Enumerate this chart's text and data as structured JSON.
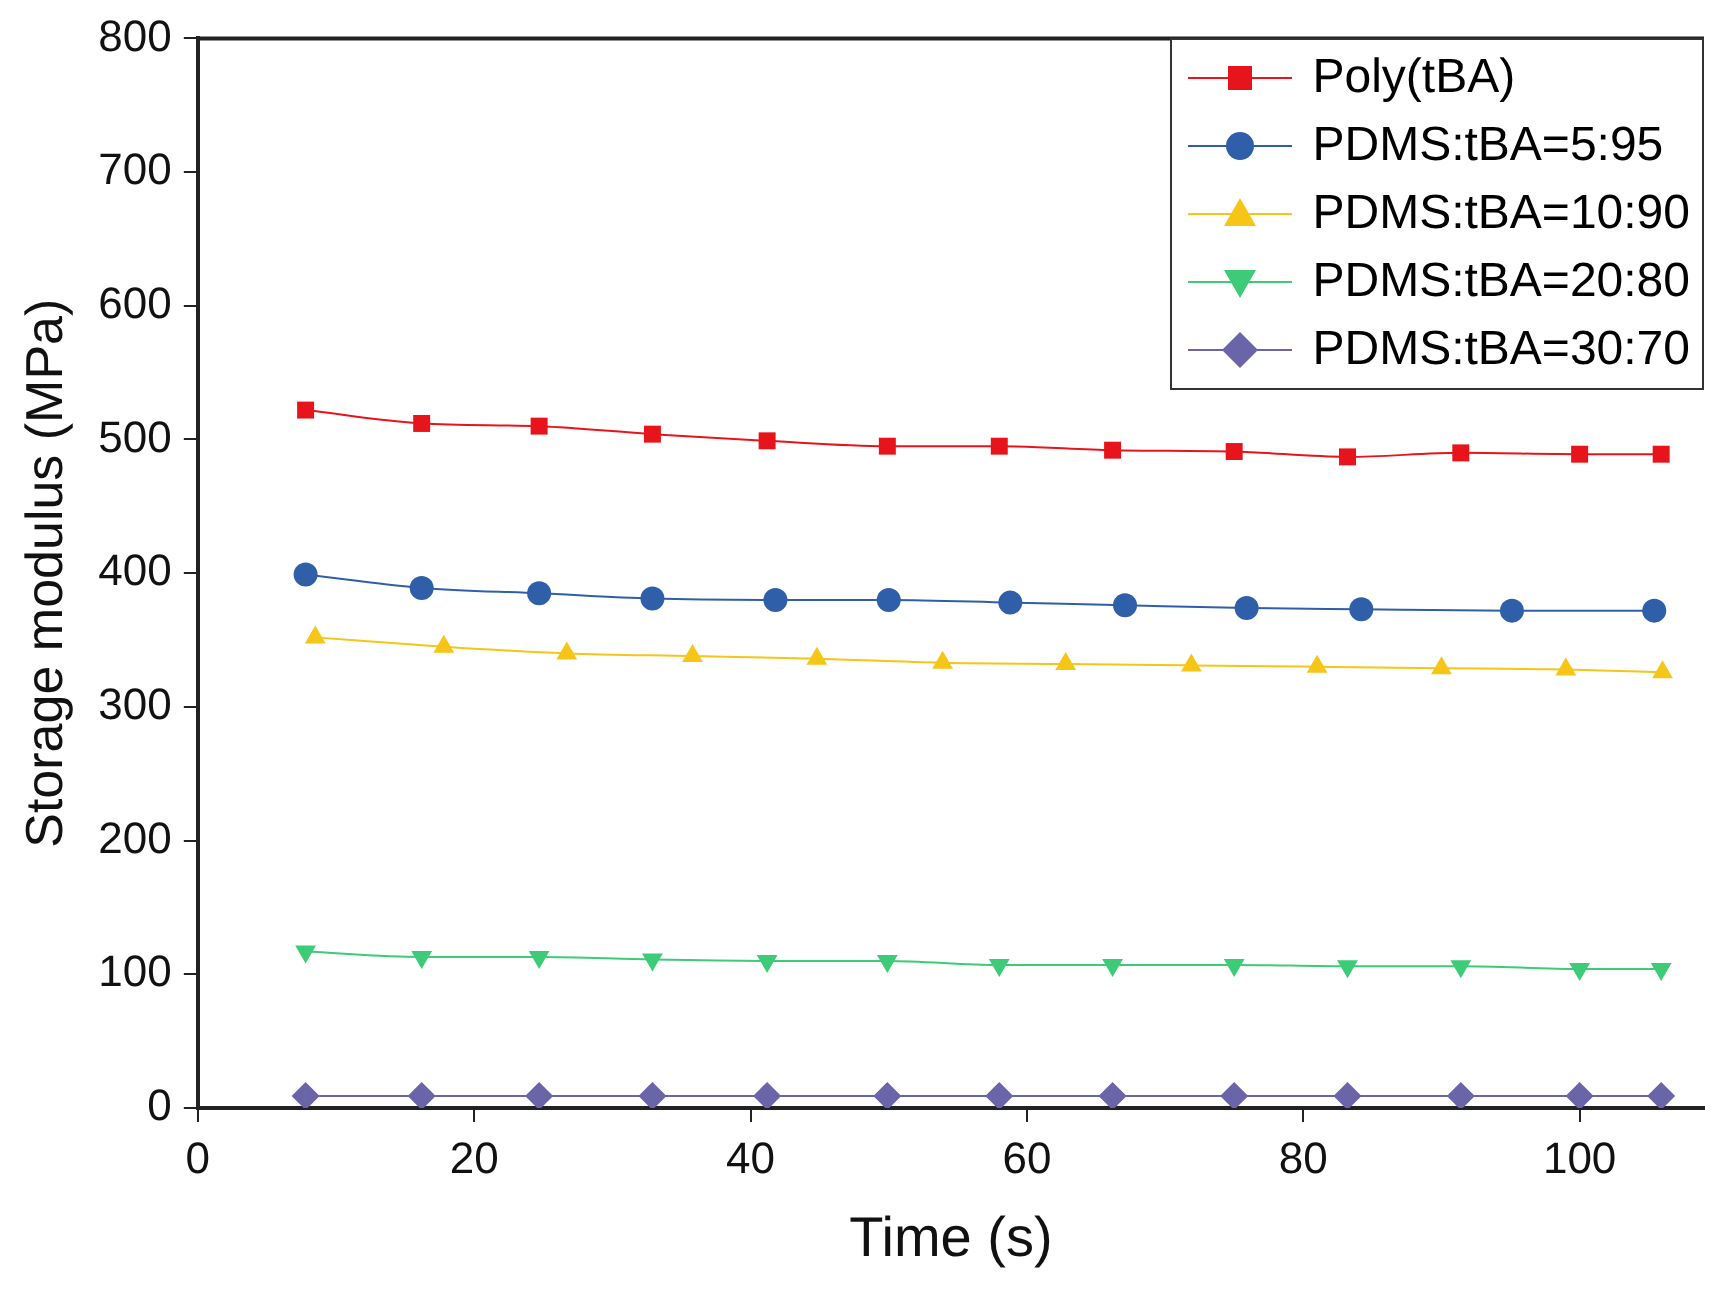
{
  "chart_data": {
    "type": "line",
    "xlabel": "Time (s)",
    "ylabel": "Storage modulus (MPa)",
    "xlim": [
      0,
      109
    ],
    "xticks": [
      0,
      20,
      40,
      60,
      80,
      100
    ],
    "ylim": [
      0,
      800
    ],
    "yticks": [
      0,
      100,
      200,
      300,
      400,
      500,
      600,
      700,
      800
    ],
    "grid": false,
    "legend": "top right",
    "line_style": "solid",
    "series": [
      {
        "name": "Poly(tBA)",
        "color": "#e8141c",
        "marker": "square",
        "x": [
          7.8,
          16.2,
          24.7,
          32.9,
          41.2,
          49.9,
          58.0,
          66.2,
          75.0,
          83.2,
          91.4,
          100.0,
          105.9
        ],
        "values": [
          522,
          512,
          510,
          504,
          499,
          495,
          495,
          492,
          491,
          487,
          490,
          489,
          489
        ]
      },
      {
        "name": "PDMS:tBA=5:95",
        "color": "#2f5fa8",
        "marker": "circle",
        "x": [
          7.8,
          16.2,
          24.7,
          32.9,
          41.8,
          50.0,
          58.8,
          67.1,
          75.9,
          84.2,
          95.1,
          105.4
        ],
        "values": [
          399,
          389,
          385,
          381,
          380,
          380,
          378,
          376,
          374,
          373,
          372,
          372
        ]
      },
      {
        "name": "PDMS:tBA=10:90",
        "color": "#f5c518",
        "marker": "triangle",
        "x": [
          8.5,
          17.8,
          26.7,
          35.8,
          44.8,
          53.9,
          62.8,
          71.9,
          81.0,
          90.0,
          99.0,
          106.0
        ],
        "values": [
          352,
          345,
          340,
          338,
          336,
          333,
          332,
          331,
          330,
          329,
          328,
          326
        ]
      },
      {
        "name": "PDMS:tBA=20:80",
        "color": "#3ecb78",
        "marker": "triangle-down",
        "x": [
          7.8,
          16.2,
          24.7,
          32.9,
          41.2,
          49.9,
          58.0,
          66.2,
          75.0,
          83.2,
          91.4,
          100.0,
          105.9
        ],
        "values": [
          117,
          113,
          113,
          111,
          110,
          110,
          107,
          107,
          107,
          106,
          106,
          104,
          104
        ]
      },
      {
        "name": "PDMS:tBA=30:70",
        "color": "#6a64a8",
        "marker": "diamond",
        "x": [
          7.8,
          16.2,
          24.7,
          32.9,
          41.2,
          49.9,
          58.0,
          66.2,
          75.0,
          83.2,
          91.4,
          100.0,
          105.9
        ],
        "values": [
          9,
          9,
          9,
          9,
          9,
          9,
          9,
          9,
          9,
          9,
          9,
          9,
          9
        ]
      }
    ]
  }
}
